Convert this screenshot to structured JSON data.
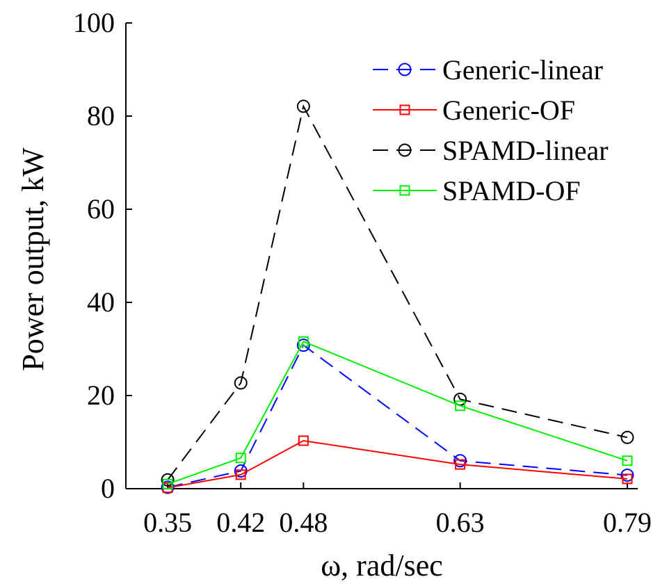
{
  "chart_data": {
    "type": "line",
    "title": "",
    "xlabel": "ω, rad/sec",
    "ylabel": "Power output, kW",
    "x": [
      0.35,
      0.42,
      0.48,
      0.63,
      0.79
    ],
    "x_tick_labels": [
      "0.35",
      "0.42",
      "0.48",
      "0.63",
      "0.79"
    ],
    "xlim": [
      0.31,
      0.8
    ],
    "ylim": [
      0,
      100
    ],
    "y_ticks": [
      0,
      20,
      40,
      60,
      80,
      100
    ],
    "y_tick_labels": [
      "0",
      "20",
      "40",
      "60",
      "80",
      "100"
    ],
    "grid": false,
    "legend_position": "top-right",
    "series": [
      {
        "name": "Generic-linear",
        "values": [
          0.3,
          3.8,
          30.8,
          6.0,
          2.9
        ],
        "color": "#0000ff",
        "dash": "dashed",
        "marker": "circle"
      },
      {
        "name": "Generic-OF",
        "values": [
          0.2,
          3.0,
          10.3,
          5.2,
          2.1
        ],
        "color": "#ff0000",
        "dash": "solid",
        "marker": "square"
      },
      {
        "name": "SPAMD-linear",
        "values": [
          1.9,
          22.7,
          82.1,
          19.2,
          11.0
        ],
        "color": "#000000",
        "dash": "dashed",
        "marker": "circle"
      },
      {
        "name": "SPAMD-OF",
        "values": [
          1.0,
          6.6,
          31.6,
          17.8,
          6.0
        ],
        "color": "#00ee00",
        "dash": "solid",
        "marker": "square"
      }
    ]
  }
}
